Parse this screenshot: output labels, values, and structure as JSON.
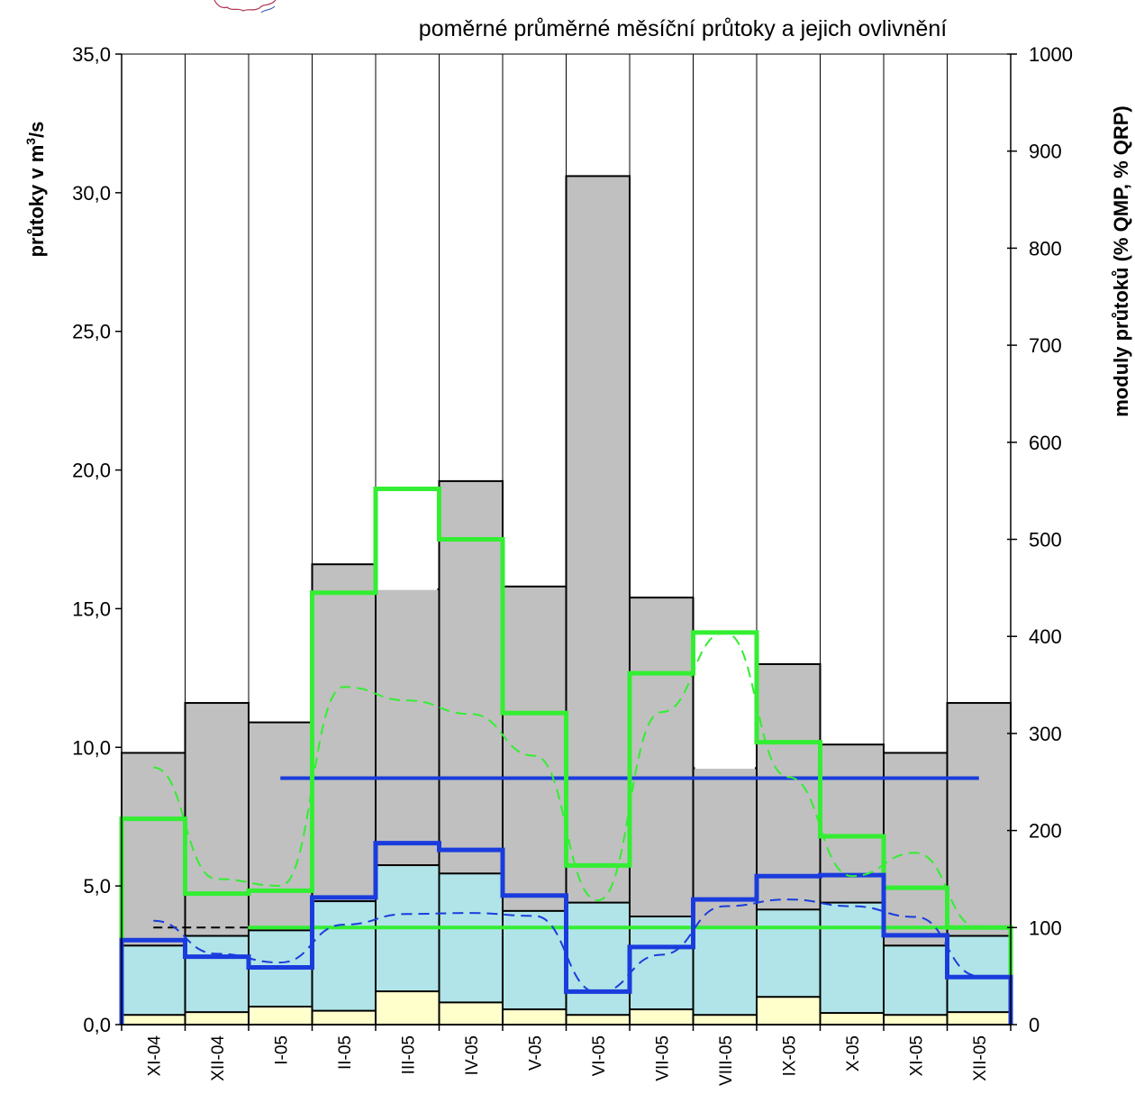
{
  "chart_data": {
    "type": "bar",
    "title": "poměrné průměrné měsíční  průtoky a jejich  ovlivnění",
    "ylabel_left_prefix": "průtoky v m",
    "ylabel_left_sup": "3",
    "ylabel_left_suffix": "/s",
    "ylabel_right": "moduly průtoků (% QMP, % QRP)",
    "ylim_left": [
      0,
      35
    ],
    "ylim_right": [
      0,
      1000
    ],
    "left_ticks": [
      "0,0",
      "5,0",
      "10,0",
      "15,0",
      "20,0",
      "25,0",
      "30,0",
      "35,0"
    ],
    "left_tick_values": [
      0,
      5,
      10,
      15,
      20,
      25,
      30,
      35
    ],
    "right_ticks": [
      "0",
      "100",
      "200",
      "300",
      "400",
      "500",
      "600",
      "700",
      "800",
      "900",
      "1000"
    ],
    "right_tick_values": [
      0,
      100,
      200,
      300,
      400,
      500,
      600,
      700,
      800,
      900,
      1000
    ],
    "categories": [
      "XI-04",
      "XII-04",
      "I-05",
      "II-05",
      "III-05",
      "IV-05",
      "V-05",
      "VI-05",
      "VII-05",
      "VIII-05",
      "IX-05",
      "X-05",
      "XI-05",
      "XII-05"
    ],
    "series": [
      {
        "axis": "left",
        "style": "gray-bars",
        "color": "#c0c0c0",
        "values": [
          9.8,
          11.6,
          10.9,
          16.6,
          15.7,
          19.6,
          15.8,
          30.6,
          15.4,
          9.25,
          13.0,
          10.1,
          9.8,
          11.6
        ]
      },
      {
        "axis": "left",
        "style": "cyan-bars",
        "color": "#b0e4e8",
        "values": [
          2.85,
          3.2,
          3.4,
          4.45,
          5.75,
          5.45,
          4.1,
          4.4,
          3.9,
          3.5,
          4.15,
          4.4,
          2.85,
          3.2
        ]
      },
      {
        "axis": "left",
        "style": "yellow-bars",
        "color": "#ffffcc",
        "values": [
          0.35,
          0.45,
          0.65,
          0.5,
          1.2,
          0.8,
          0.55,
          0.35,
          0.55,
          0.35,
          1.0,
          0.42,
          0.35,
          0.45
        ]
      },
      {
        "axis": "right",
        "style": "green-step",
        "color": "#33ee33",
        "values": [
          212,
          135,
          138,
          445,
          552,
          500,
          321,
          164,
          362,
          404,
          291,
          194,
          141,
          100
        ]
      },
      {
        "axis": "right",
        "style": "blue-step",
        "color": "#1a3cdd",
        "values": [
          87,
          70,
          59,
          131,
          187,
          180,
          133,
          34,
          80,
          129,
          153,
          154,
          92,
          49
        ]
      },
      {
        "axis": "right",
        "style": "green-dashed",
        "color": "#33ee33",
        "values": [
          265,
          150,
          143,
          348,
          334,
          320,
          277,
          128,
          322,
          404,
          255,
          153,
          177,
          100
        ]
      },
      {
        "axis": "right",
        "style": "blue-dashed",
        "color": "#1a3cdd",
        "values": [
          107,
          73,
          64,
          103,
          114,
          115,
          112,
          33,
          72,
          122,
          129,
          122,
          111,
          50
        ]
      },
      {
        "axis": "right",
        "style": "blue-flat",
        "color": "#1a3cdd",
        "values": [
          null,
          null,
          254,
          254,
          254,
          254,
          254,
          254,
          254,
          254,
          254,
          254,
          254,
          254
        ]
      },
      {
        "axis": "right",
        "style": "green-flat",
        "color": "#33ee33",
        "values": [
          null,
          null,
          100,
          100,
          100,
          100,
          100,
          100,
          100,
          100,
          100,
          100,
          100,
          100
        ]
      },
      {
        "axis": "left",
        "style": "black-dashed",
        "color": "#000000",
        "values": [
          3.5,
          3.5,
          3.5,
          3.5,
          3.5,
          3.5,
          3.5,
          3.5,
          3.5,
          3.5,
          3.5,
          3.5,
          3.5,
          3.5
        ]
      }
    ]
  }
}
